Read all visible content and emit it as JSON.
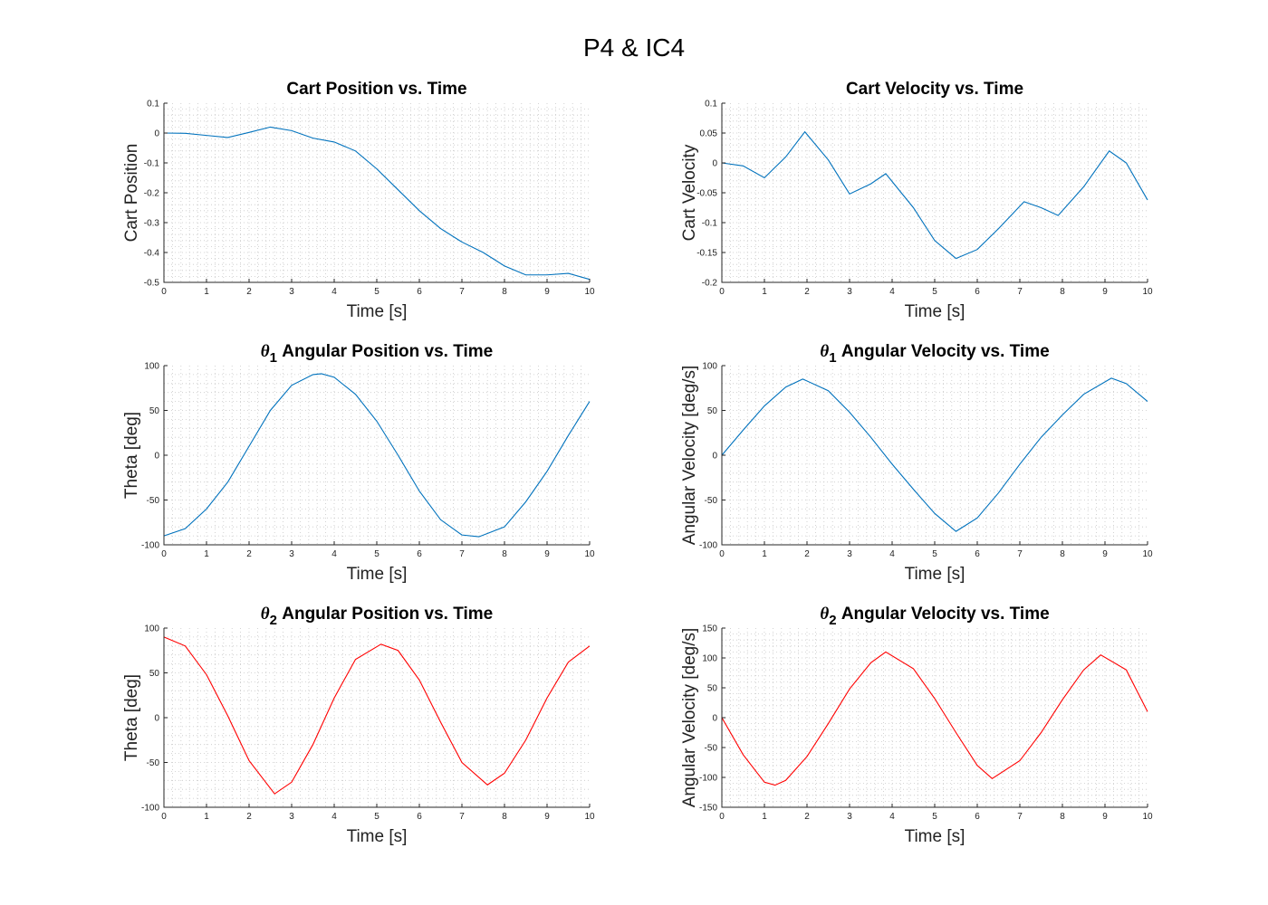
{
  "figure": {
    "title": "P4 & IC4"
  },
  "colors": {
    "blue": "#0072bd",
    "red": "#ff0000"
  },
  "chart_data": [
    {
      "id": "cart-position",
      "type": "line",
      "title": "Cart Position vs. Time",
      "xlabel": "Time [s]",
      "ylabel": "Cart Position",
      "xlim": [
        0,
        10
      ],
      "ylim": [
        -0.5,
        0.1
      ],
      "xticks": [
        0,
        1,
        2,
        3,
        4,
        5,
        6,
        7,
        8,
        9,
        10
      ],
      "yticks": [
        -0.5,
        -0.4,
        -0.3,
        -0.2,
        -0.1,
        0,
        0.1
      ],
      "grid": true,
      "series": [
        {
          "color": "#0072bd",
          "x": [
            0,
            0.5,
            1,
            1.5,
            2,
            2.5,
            3,
            3.5,
            4,
            4.5,
            5,
            5.5,
            6,
            6.5,
            7,
            7.5,
            8,
            8.5,
            9,
            9.5,
            10
          ],
          "y": [
            0,
            -0.001,
            -0.008,
            -0.015,
            0.002,
            0.02,
            0.008,
            -0.017,
            -0.03,
            -0.06,
            -0.12,
            -0.19,
            -0.26,
            -0.32,
            -0.365,
            -0.4,
            -0.445,
            -0.475,
            -0.475,
            -0.47,
            -0.49
          ]
        }
      ]
    },
    {
      "id": "cart-velocity",
      "type": "line",
      "title": "Cart Velocity vs. Time",
      "xlabel": "Time [s]",
      "ylabel": "Cart Velocity",
      "xlim": [
        0,
        10
      ],
      "ylim": [
        -0.2,
        0.1
      ],
      "xticks": [
        0,
        1,
        2,
        3,
        4,
        5,
        6,
        7,
        8,
        9,
        10
      ],
      "yticks": [
        -0.2,
        -0.15,
        -0.1,
        -0.05,
        0,
        0.05,
        0.1
      ],
      "grid": true,
      "series": [
        {
          "color": "#0072bd",
          "x": [
            0,
            0.5,
            1,
            1.5,
            1.95,
            2.5,
            3,
            3.5,
            3.85,
            4.5,
            5,
            5.5,
            6,
            6.5,
            7.1,
            7.5,
            7.9,
            8.5,
            9.1,
            9.5,
            10
          ],
          "y": [
            0,
            -0.005,
            -0.025,
            0.01,
            0.052,
            0.005,
            -0.052,
            -0.035,
            -0.018,
            -0.075,
            -0.13,
            -0.16,
            -0.145,
            -0.11,
            -0.065,
            -0.075,
            -0.088,
            -0.04,
            0.02,
            0.0,
            -0.062
          ]
        }
      ]
    },
    {
      "id": "theta1-position",
      "type": "line",
      "title_symbol": "θ",
      "title_sub": "1",
      "title": " Angular Position vs. Time",
      "xlabel": "Time [s]",
      "ylabel": "Theta [deg]",
      "xlim": [
        0,
        10
      ],
      "ylim": [
        -100,
        100
      ],
      "xticks": [
        0,
        1,
        2,
        3,
        4,
        5,
        6,
        7,
        8,
        9,
        10
      ],
      "yticks": [
        -100,
        -50,
        0,
        50,
        100
      ],
      "grid": true,
      "series": [
        {
          "color": "#0072bd",
          "x": [
            0,
            0.5,
            1,
            1.5,
            2,
            2.5,
            3,
            3.5,
            3.7,
            4,
            4.5,
            5,
            5.5,
            6,
            6.5,
            7,
            7.4,
            8,
            8.5,
            9,
            9.5,
            10
          ],
          "y": [
            -90,
            -82,
            -60,
            -30,
            10,
            50,
            78,
            90,
            91,
            87,
            68,
            38,
            0,
            -40,
            -72,
            -89,
            -91,
            -80,
            -52,
            -18,
            22,
            60
          ]
        }
      ]
    },
    {
      "id": "theta1-velocity",
      "type": "line",
      "title_symbol": "θ",
      "title_sub": "1",
      "title": " Angular Velocity vs. Time",
      "xlabel": "Time [s]",
      "ylabel": "Angular Velocity [deg/s]",
      "xlim": [
        0,
        10
      ],
      "ylim": [
        -100,
        100
      ],
      "xticks": [
        0,
        1,
        2,
        3,
        4,
        5,
        6,
        7,
        8,
        9,
        10
      ],
      "yticks": [
        -100,
        -50,
        0,
        50,
        100
      ],
      "grid": true,
      "series": [
        {
          "color": "#0072bd",
          "x": [
            0,
            0.5,
            1,
            1.5,
            1.9,
            2.5,
            3,
            3.5,
            4,
            4.5,
            5,
            5.5,
            6,
            6.5,
            7,
            7.5,
            8,
            8.5,
            9.15,
            9.5,
            10
          ],
          "y": [
            0,
            28,
            55,
            76,
            85,
            72,
            48,
            20,
            -10,
            -38,
            -65,
            -85,
            -70,
            -42,
            -10,
            20,
            45,
            68,
            86,
            80,
            60
          ]
        }
      ]
    },
    {
      "id": "theta2-position",
      "type": "line",
      "title_symbol": "θ",
      "title_sub": "2",
      "title": " Angular Position vs. Time",
      "xlabel": "Time [s]",
      "ylabel": "Theta [deg]",
      "xlim": [
        0,
        10
      ],
      "ylim": [
        -100,
        100
      ],
      "xticks": [
        0,
        1,
        2,
        3,
        4,
        5,
        6,
        7,
        8,
        9,
        10
      ],
      "yticks": [
        -100,
        -50,
        0,
        50,
        100
      ],
      "grid": true,
      "series": [
        {
          "color": "#ff0000",
          "x": [
            0,
            0.5,
            1,
            1.5,
            2,
            2.6,
            3,
            3.5,
            4,
            4.5,
            5.1,
            5.5,
            6,
            6.5,
            7,
            7.6,
            8,
            8.5,
            9,
            9.5,
            10
          ],
          "y": [
            90,
            80,
            48,
            2,
            -48,
            -85,
            -72,
            -30,
            22,
            65,
            82,
            75,
            42,
            -5,
            -50,
            -75,
            -62,
            -25,
            22,
            62,
            80
          ]
        }
      ]
    },
    {
      "id": "theta2-velocity",
      "type": "line",
      "title_symbol": "θ",
      "title_sub": "2",
      "title": " Angular Velocity vs. Time",
      "xlabel": "Time [s]",
      "ylabel": "Angular Velocity [deg/s]",
      "xlim": [
        0,
        10
      ],
      "ylim": [
        -150,
        150
      ],
      "xticks": [
        0,
        1,
        2,
        3,
        4,
        5,
        6,
        7,
        8,
        9,
        10
      ],
      "yticks": [
        -150,
        -100,
        -50,
        0,
        50,
        100,
        150
      ],
      "grid": true,
      "series": [
        {
          "color": "#ff0000",
          "x": [
            0,
            0.5,
            1,
            1.25,
            1.5,
            2,
            2.5,
            3,
            3.5,
            3.85,
            4.5,
            5,
            5.5,
            6,
            6.35,
            7,
            7.5,
            8,
            8.5,
            8.9,
            9.5,
            10
          ],
          "y": [
            0,
            -62,
            -108,
            -113,
            -105,
            -65,
            -10,
            48,
            92,
            110,
            82,
            32,
            -25,
            -80,
            -102,
            -72,
            -25,
            30,
            80,
            105,
            80,
            10
          ]
        }
      ]
    }
  ]
}
